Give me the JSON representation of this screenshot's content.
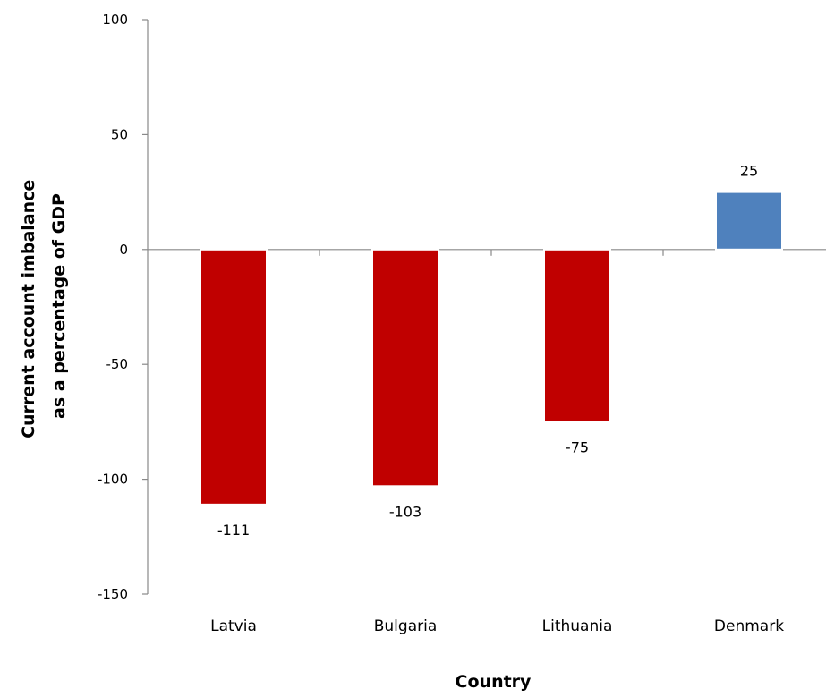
{
  "chart_data": {
    "type": "bar",
    "title": "",
    "xlabel": "Country",
    "ylabel_lines": [
      "Current account imbalance",
      "as a percentage of GDP"
    ],
    "categories": [
      "Latvia",
      "Bulgaria",
      "Lithuania",
      "Denmark"
    ],
    "values": [
      -111,
      -103,
      -75,
      25
    ],
    "data_labels": [
      "-111",
      "-103",
      "-75",
      "25"
    ],
    "bar_colors": [
      "#c00000",
      "#c00000",
      "#c00000",
      "#4f81bd"
    ],
    "ylim": [
      -150,
      100
    ],
    "yticks": [
      100,
      50,
      0,
      -50,
      -100,
      -150
    ],
    "grid": false,
    "legend": "none"
  }
}
